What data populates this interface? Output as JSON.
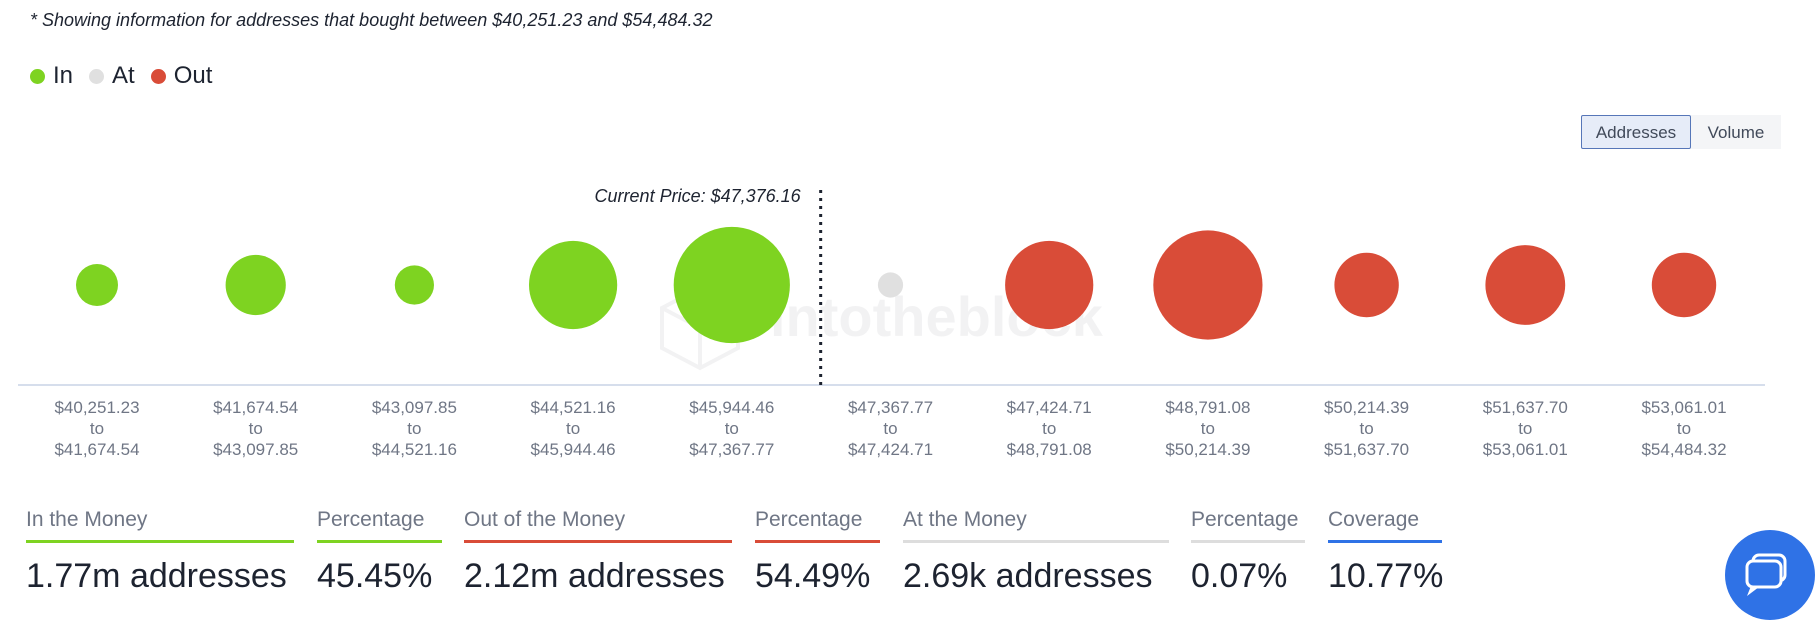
{
  "note": "* Showing information for addresses that bought between $40,251.23 and $54,484.32",
  "legend": [
    {
      "label": "In",
      "color": "#7ed321"
    },
    {
      "label": "At",
      "color": "#e0e0e0"
    },
    {
      "label": "Out",
      "color": "#d94c38"
    }
  ],
  "toggle": {
    "addresses_label": "Addresses",
    "volume_label": "Volume",
    "active": "Addresses"
  },
  "watermark": "intotheblock",
  "chart_data": {
    "type": "bubble",
    "current_price_label": "Current Price: $47,376.16",
    "current_price": 47376.16,
    "categories": [
      {
        "from": "$40,251.23",
        "to_word": "to",
        "to": "$41,674.54",
        "status": "In",
        "size": 0.3
      },
      {
        "from": "$41,674.54",
        "to_word": "to",
        "to": "$43,097.85",
        "status": "In",
        "size": 0.43
      },
      {
        "from": "$43,097.85",
        "to_word": "to",
        "to": "$44,521.16",
        "status": "In",
        "size": 0.28
      },
      {
        "from": "$44,521.16",
        "to_word": "to",
        "to": "$45,944.46",
        "status": "In",
        "size": 0.63
      },
      {
        "from": "$45,944.46",
        "to_word": "to",
        "to": "$47,367.77",
        "status": "In",
        "size": 0.83
      },
      {
        "from": "$47,367.77",
        "to_word": "to",
        "to": "$47,424.71",
        "status": "At",
        "size": 0.18
      },
      {
        "from": "$47,424.71",
        "to_word": "to",
        "to": "$48,791.08",
        "status": "Out",
        "size": 0.63
      },
      {
        "from": "$48,791.08",
        "to_word": "to",
        "to": "$50,214.39",
        "status": "Out",
        "size": 0.78
      },
      {
        "from": "$50,214.39",
        "to_word": "to",
        "to": "$51,637.70",
        "status": "Out",
        "size": 0.46
      },
      {
        "from": "$51,637.70",
        "to_word": "to",
        "to": "$53,061.01",
        "status": "Out",
        "size": 0.57
      },
      {
        "from": "$53,061.01",
        "to_word": "to",
        "to": "$54,484.32",
        "status": "Out",
        "size": 0.46
      }
    ]
  },
  "stats": [
    {
      "label": "In the Money",
      "value": "1.77m addresses",
      "color": "#7ed321"
    },
    {
      "label": "Percentage",
      "value": "45.45%",
      "color": "#7ed321"
    },
    {
      "label": "Out of the Money",
      "value": "2.12m addresses",
      "color": "#d94c38"
    },
    {
      "label": "Percentage",
      "value": "54.49%",
      "color": "#d94c38"
    },
    {
      "label": "At the Money",
      "value": "2.69k addresses",
      "color": "#dddddd"
    },
    {
      "label": "Percentage",
      "value": "0.07%",
      "color": "#dddddd"
    },
    {
      "label": "Coverage",
      "value": "10.77%",
      "color": "#2f72e6"
    }
  ],
  "chat_icon": "chat-bubble-icon"
}
